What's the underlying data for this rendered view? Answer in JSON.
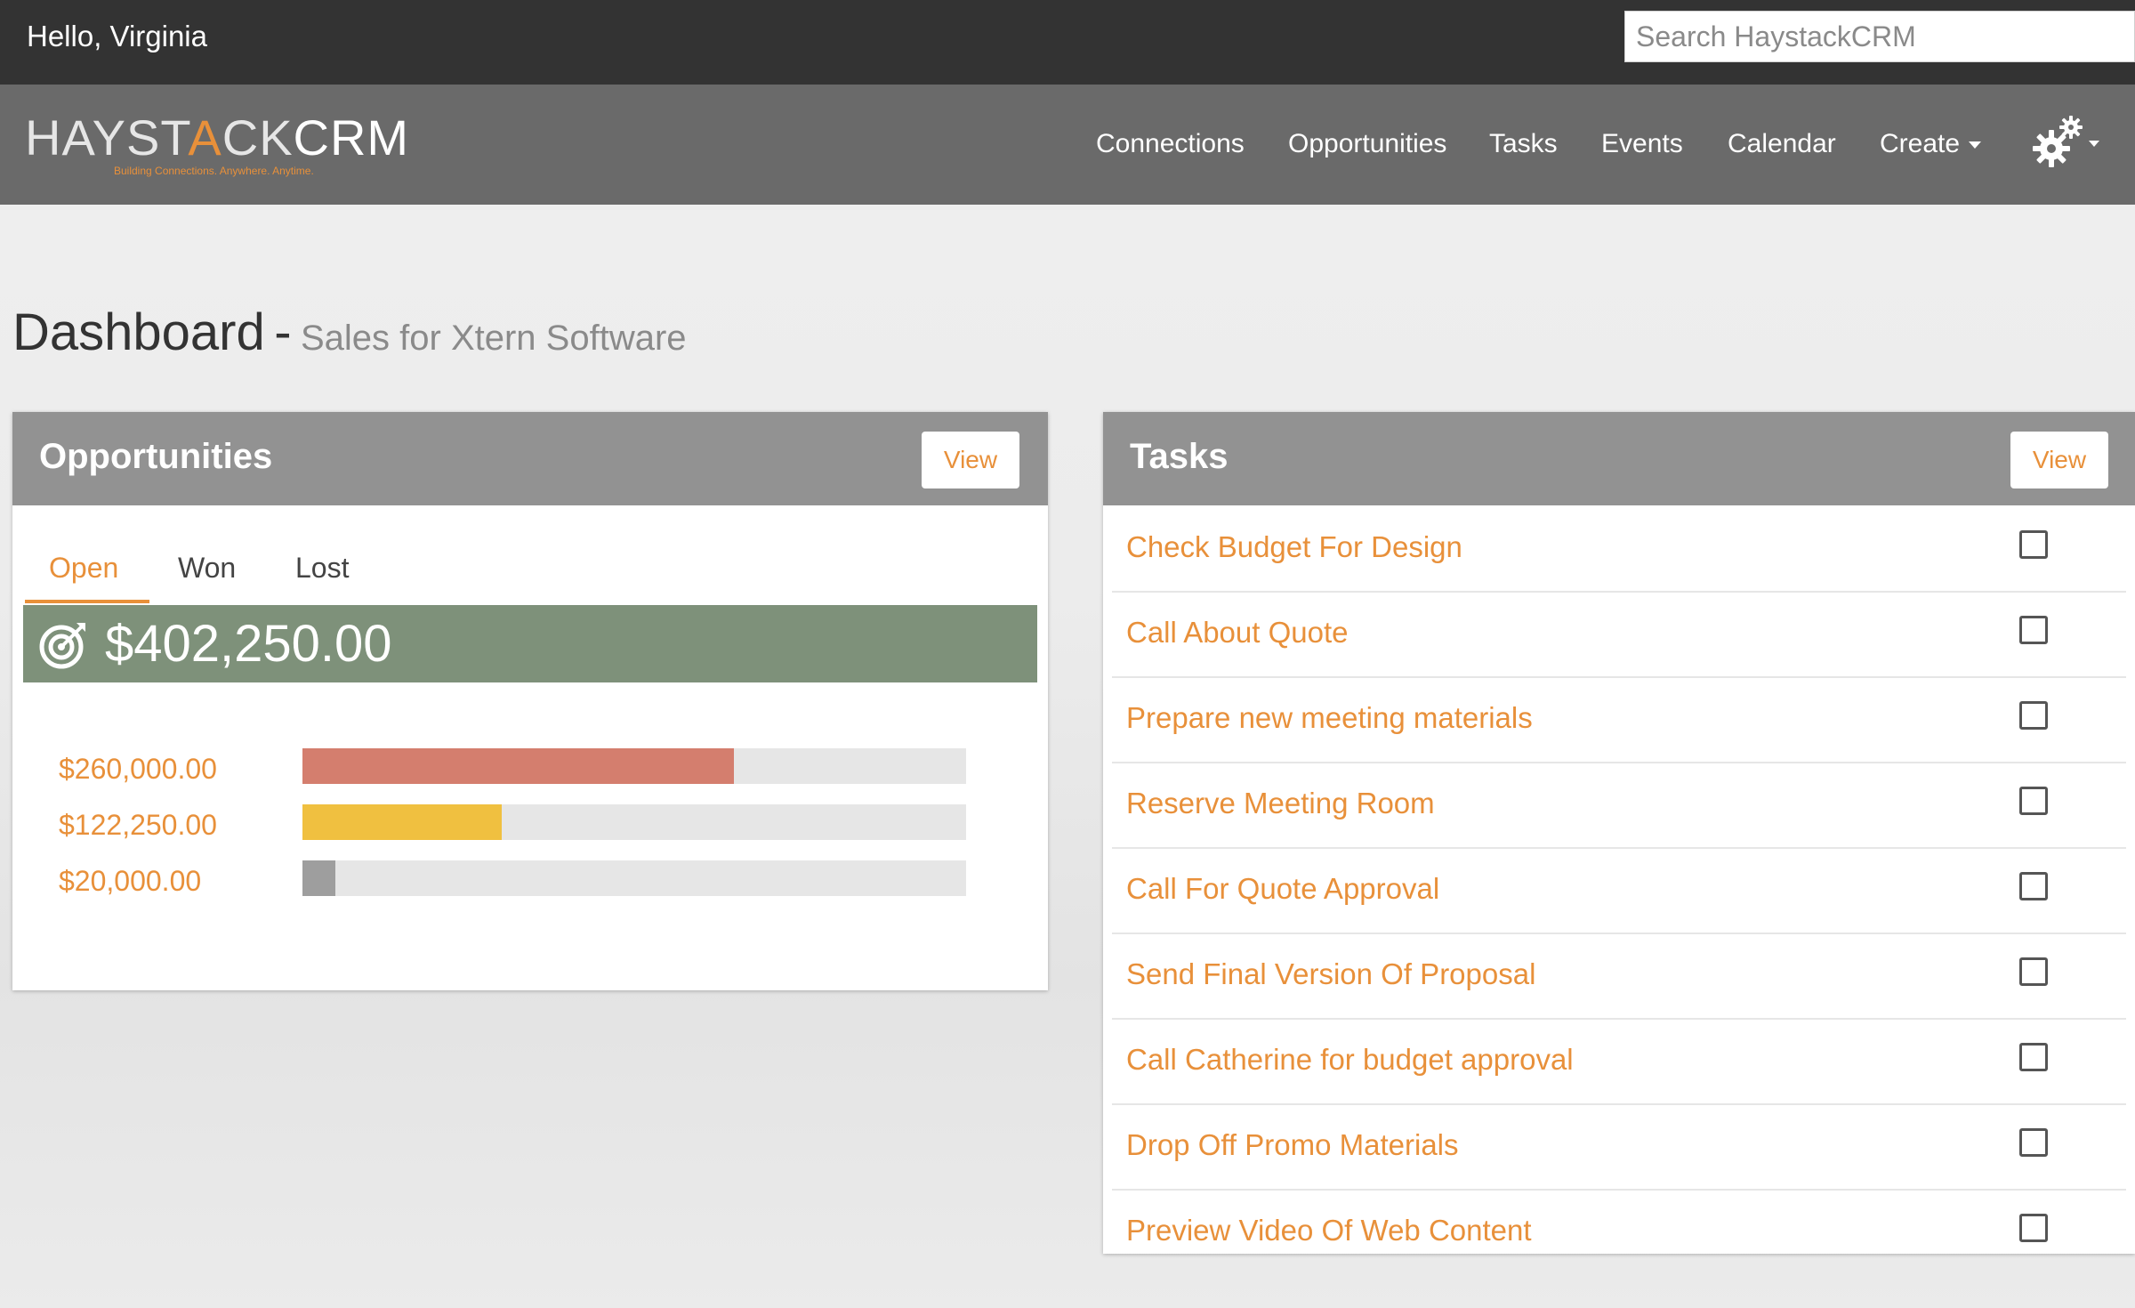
{
  "header": {
    "greeting": "Hello, Virginia",
    "search_placeholder": "Search HaystackCRM"
  },
  "logo": {
    "part1": "HAYST",
    "part2": "A",
    "part3": "CK",
    "part4": "CRM",
    "tagline": "Building Connections. Anywhere. Anytime."
  },
  "nav": {
    "items": [
      {
        "label": "Connections"
      },
      {
        "label": "Opportunities"
      },
      {
        "label": "Tasks"
      },
      {
        "label": "Events"
      },
      {
        "label": "Calendar"
      },
      {
        "label": "Create"
      }
    ],
    "settings_icon": "gear-icon"
  },
  "page": {
    "title": "Dashboard",
    "separator": "-",
    "subtitle": "Sales for Xtern Software"
  },
  "opportunities": {
    "title": "Opportunities",
    "view_label": "View",
    "tabs": [
      {
        "label": "Open",
        "active": true
      },
      {
        "label": "Won",
        "active": false
      },
      {
        "label": "Lost",
        "active": false
      }
    ],
    "total": "$402,250.00",
    "total_icon": "target-icon",
    "rows": [
      {
        "amount": "$260,000.00",
        "fraction": 0.65,
        "color": "#d47e6e"
      },
      {
        "amount": "$122,250.00",
        "fraction": 0.3,
        "color": "#f0c040"
      },
      {
        "amount": "$20,000.00",
        "fraction": 0.05,
        "color": "#9e9e9e"
      }
    ]
  },
  "tasks": {
    "title": "Tasks",
    "view_label": "View",
    "items": [
      {
        "label": "Check Budget For Design",
        "checked": false
      },
      {
        "label": "Call About Quote",
        "checked": false
      },
      {
        "label": "Prepare new meeting materials",
        "checked": false
      },
      {
        "label": "Reserve Meeting Room",
        "checked": false
      },
      {
        "label": "Call For Quote Approval",
        "checked": false
      },
      {
        "label": "Send Final Version Of Proposal",
        "checked": false
      },
      {
        "label": "Call Catherine for budget approval",
        "checked": false
      },
      {
        "label": "Drop Off Promo Materials",
        "checked": false
      },
      {
        "label": "Preview Video Of Web Content",
        "checked": false
      }
    ]
  },
  "colors": {
    "accent": "#e8903a",
    "topbar": "#333333",
    "navbar": "#6a6a6a",
    "panel_header": "#929292",
    "total_bar": "#7e917a"
  }
}
